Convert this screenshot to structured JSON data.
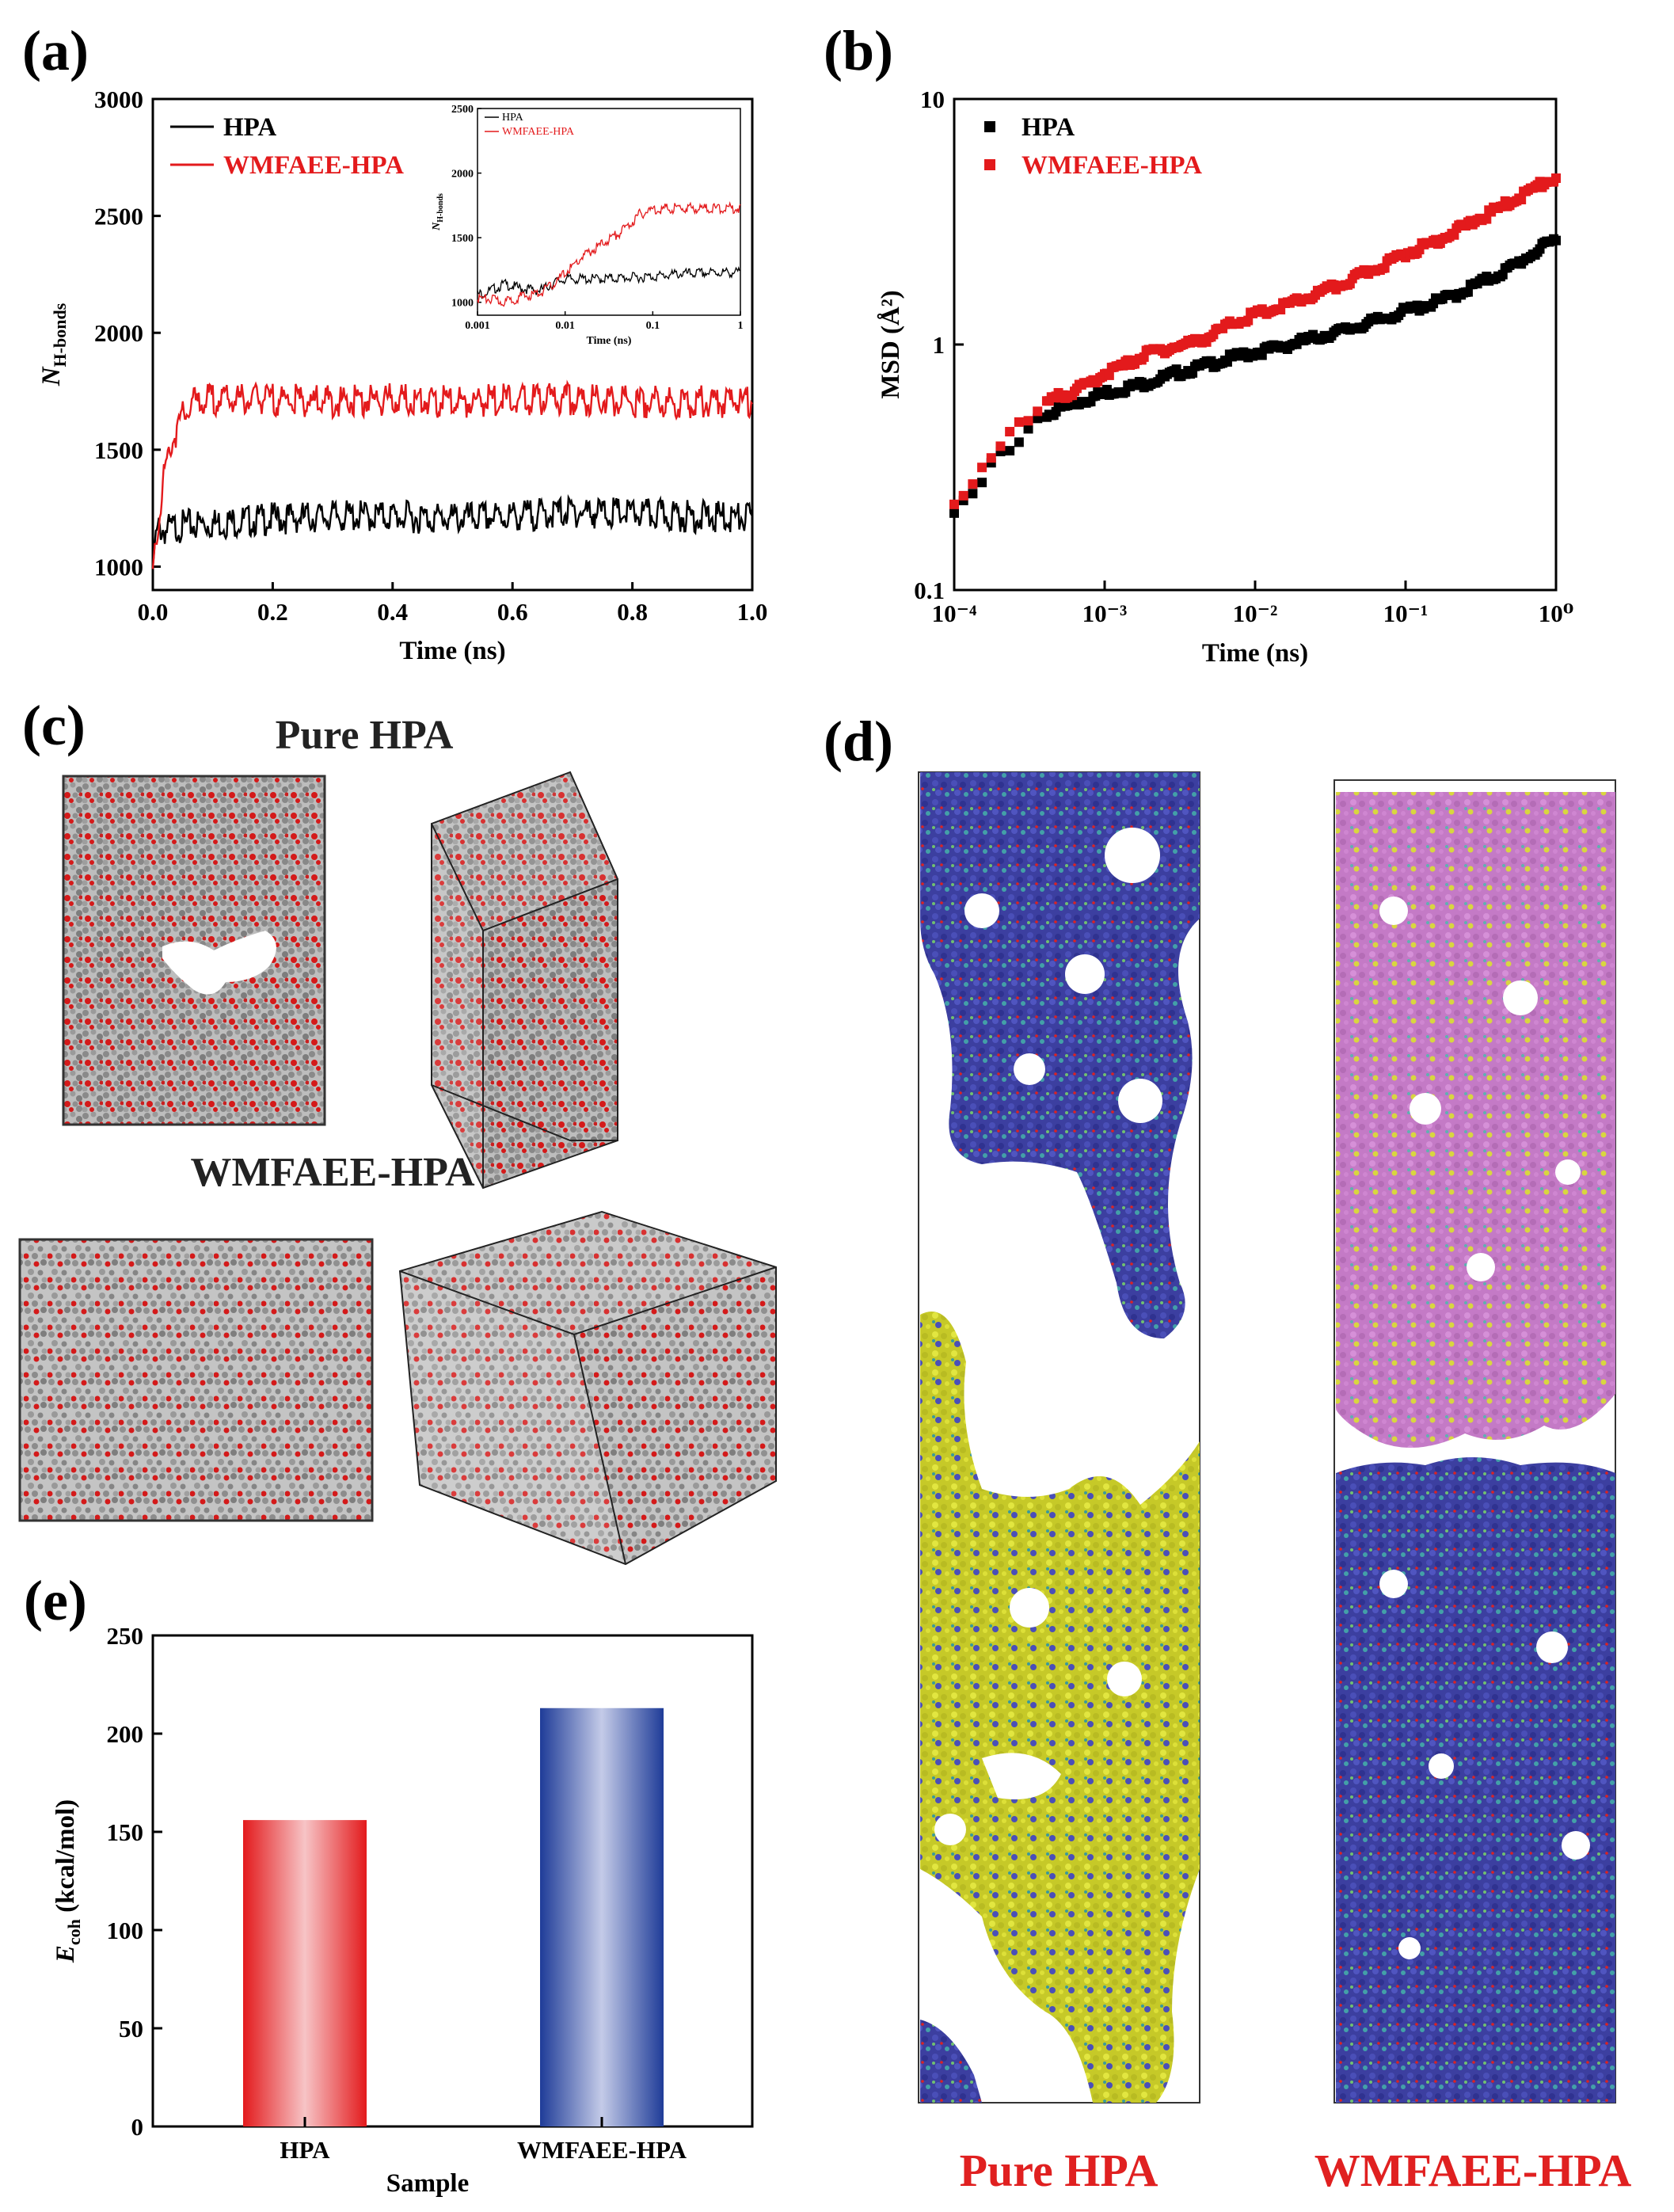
{
  "panels": {
    "a": "(a)",
    "b": "(b)",
    "c": "(c)",
    "d": "(d)",
    "e": "(e)"
  },
  "colors": {
    "hpa": "#000000",
    "wmfaee": "#e31a1c",
    "bar_red": "#e8383d",
    "bar_blue": "#1f3c98",
    "atom_red": "#d41a1a",
    "atom_grey": "#8a8a8a",
    "blue_mol": "#3b3fa3",
    "yellow_mol": "#d8dc30",
    "pink_mol": "#c879c8"
  },
  "panel_c": {
    "title_top": "Pure HPA",
    "title_bottom": "WMFAEE-HPA"
  },
  "panel_d": {
    "left_label": "Pure HPA",
    "right_label": "WMFAEE-HPA"
  },
  "chart_data": [
    {
      "id": "a",
      "type": "line",
      "title": "",
      "xlabel": "Time (ns)",
      "ylabel": "N",
      "ylabel_sub": "H-bonds",
      "xlim": [
        0.0,
        1.0
      ],
      "ylim": [
        900,
        3000
      ],
      "xticks": [
        "0.0",
        "0.2",
        "0.4",
        "0.6",
        "0.8",
        "1.0"
      ],
      "yticks": [
        "1000",
        "1500",
        "2000",
        "2500",
        "3000"
      ],
      "legend": "top-left",
      "series": [
        {
          "name": "HPA",
          "color": "#000000",
          "x": [
            0.0,
            0.005,
            0.01,
            0.02,
            0.05,
            0.1,
            0.2,
            0.3,
            0.4,
            0.5,
            0.6,
            0.7,
            0.8,
            0.9,
            1.0
          ],
          "values": [
            1000,
            1150,
            1200,
            1190,
            1210,
            1220,
            1240,
            1250,
            1250,
            1240,
            1250,
            1270,
            1260,
            1250,
            1240
          ]
        },
        {
          "name": "WMFAEE-HPA",
          "color": "#e31a1c",
          "x": [
            0.0,
            0.005,
            0.01,
            0.02,
            0.03,
            0.05,
            0.07,
            0.1,
            0.2,
            0.3,
            0.4,
            0.5,
            0.6,
            0.7,
            0.8,
            0.9,
            1.0
          ],
          "values": [
            990,
            1150,
            1250,
            1450,
            1560,
            1680,
            1740,
            1750,
            1750,
            1740,
            1750,
            1740,
            1750,
            1750,
            1740,
            1740,
            1740
          ]
        }
      ],
      "inset": {
        "type": "line",
        "xlabel": "Time (ns)",
        "ylabel": "N",
        "ylabel_sub": "H-bonds",
        "xscale": "log",
        "xlim": [
          0.001,
          1
        ],
        "ylim": [
          900,
          2500
        ],
        "xticks": [
          "0.001",
          "0.01",
          "0.1",
          "1"
        ],
        "yticks": [
          "1000",
          "1500",
          "2000",
          "2500"
        ],
        "legend": "top-left",
        "series": [
          {
            "name": "HPA",
            "color": "#000000",
            "x": [
              0.001,
              0.0015,
              0.002,
              0.003,
              0.005,
              0.008,
              0.01,
              0.02,
              0.05,
              0.1,
              0.2,
              0.5,
              1
            ],
            "values": [
              1080,
              1120,
              1160,
              1130,
              1110,
              1180,
              1200,
              1200,
              1210,
              1220,
              1240,
              1250,
              1250
            ]
          },
          {
            "name": "WMFAEE-HPA",
            "color": "#e31a1c",
            "x": [
              0.001,
              0.0015,
              0.002,
              0.003,
              0.005,
              0.008,
              0.01,
              0.015,
              0.02,
              0.03,
              0.05,
              0.07,
              0.1,
              0.2,
              0.5,
              1
            ],
            "values": [
              1050,
              1040,
              1020,
              1060,
              1090,
              1180,
              1250,
              1360,
              1420,
              1500,
              1600,
              1700,
              1740,
              1750,
              1745,
              1750
            ]
          }
        ]
      }
    },
    {
      "id": "b",
      "type": "scatter",
      "title": "",
      "xlabel": "Time (ns)",
      "ylabel": "MSD (Å²)",
      "xscale": "log",
      "yscale": "log",
      "xlim": [
        0.0001,
        1
      ],
      "ylim": [
        0.1,
        10
      ],
      "xticks": [
        "10⁻⁴",
        "10⁻³",
        "10⁻²",
        "10⁻¹",
        "10⁰"
      ],
      "yticks": [
        "0.1",
        "1",
        "10"
      ],
      "legend": "top-left",
      "series": [
        {
          "name": "HPA",
          "color": "#000000",
          "x": [
            0.0001,
            0.0002,
            0.0003,
            0.0004,
            0.0005,
            0.0007,
            0.001,
            0.002,
            0.003,
            0.005,
            0.007,
            0.01,
            0.02,
            0.03,
            0.05,
            0.07,
            0.1,
            0.2,
            0.3,
            0.5,
            0.7,
            1.0
          ],
          "values": [
            0.21,
            0.36,
            0.45,
            0.52,
            0.56,
            0.6,
            0.65,
            0.72,
            0.78,
            0.85,
            0.9,
            0.95,
            1.05,
            1.12,
            1.22,
            1.3,
            1.4,
            1.6,
            1.8,
            2.1,
            2.4,
            2.75
          ]
        },
        {
          "name": "WMFAEE-HPA",
          "color": "#e31a1c",
          "x": [
            0.0001,
            0.0002,
            0.0003,
            0.0004,
            0.0005,
            0.0007,
            0.001,
            0.002,
            0.003,
            0.005,
            0.007,
            0.01,
            0.02,
            0.03,
            0.05,
            0.07,
            0.1,
            0.2,
            0.3,
            0.5,
            0.7,
            1.0
          ],
          "values": [
            0.22,
            0.4,
            0.51,
            0.58,
            0.63,
            0.68,
            0.78,
            0.95,
            1.0,
            1.1,
            1.25,
            1.35,
            1.55,
            1.7,
            1.95,
            2.15,
            2.4,
            2.9,
            3.3,
            3.9,
            4.4,
            4.9
          ]
        }
      ]
    },
    {
      "id": "e",
      "type": "bar",
      "title": "",
      "xlabel": "Sample",
      "ylabel": "E",
      "ylabel_sub": "coh",
      "ylabel_unit": " (kcal/mol)",
      "categories": [
        "HPA",
        "WMFAEE-HPA"
      ],
      "values": [
        156,
        213
      ],
      "ylim": [
        0,
        250
      ],
      "yticks": [
        "0",
        "50",
        "100",
        "150",
        "200",
        "250"
      ]
    }
  ]
}
